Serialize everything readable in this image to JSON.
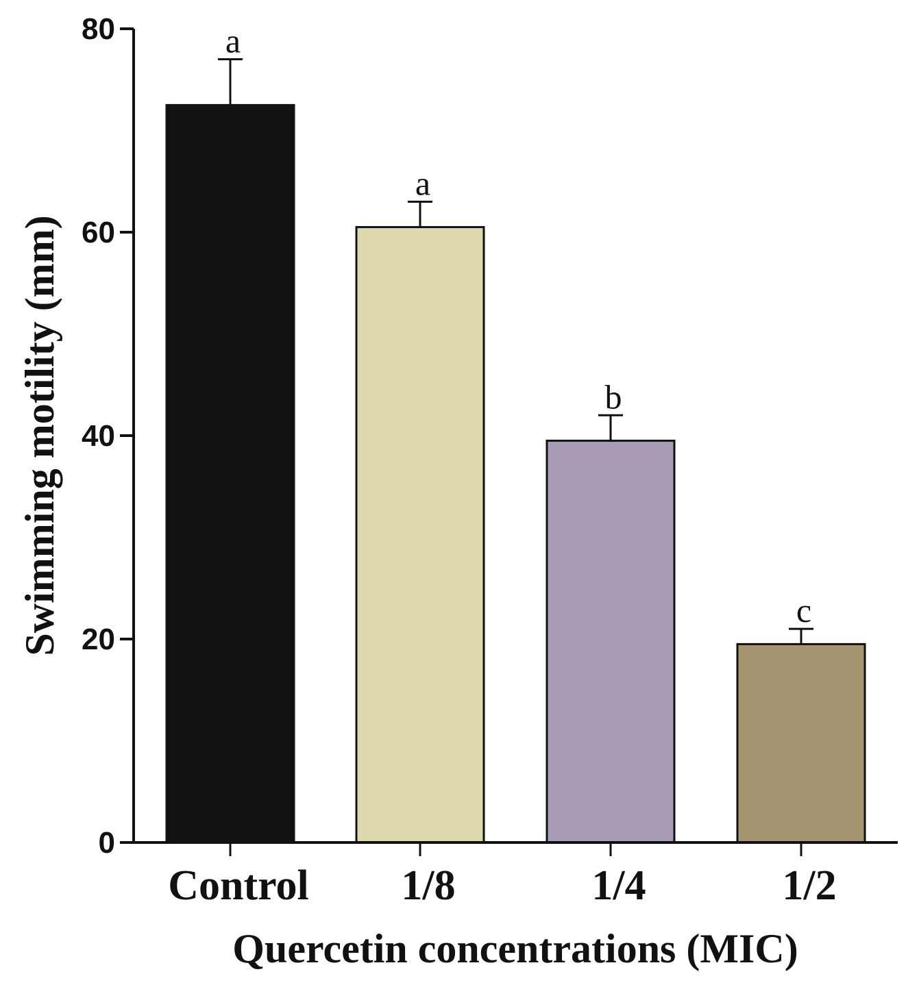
{
  "chart_data": {
    "type": "bar",
    "title": "",
    "xlabel": "Quercetin concentrations (MIC)",
    "ylabel": "Swimming motility (mm)",
    "ylim": [
      0,
      80
    ],
    "yticks": [
      0,
      20,
      40,
      60,
      80
    ],
    "categories": [
      "Control",
      "1/8",
      "1/4",
      "1/2"
    ],
    "values": [
      72.5,
      60.5,
      39.5,
      19.5
    ],
    "errors": [
      4.5,
      2.5,
      2.5,
      1.5
    ],
    "significance_labels": [
      "a",
      "a",
      "b",
      "c"
    ],
    "colors": [
      "#111111",
      "#ded8ae",
      "#a69ab5",
      "#a59570"
    ],
    "grid": false,
    "legend": "none"
  }
}
